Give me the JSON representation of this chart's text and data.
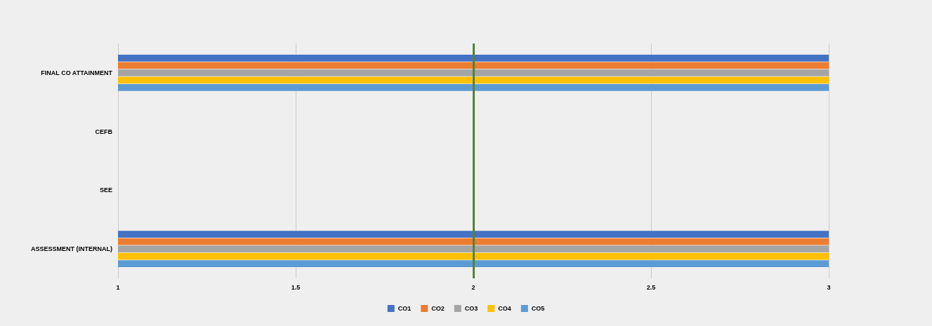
{
  "chart_data": {
    "type": "bar",
    "orientation": "horizontal",
    "categories": [
      "FINAL CO ATTAINMENT",
      "CEFB",
      "SEE",
      "ASSESSMENT (INTERNAL)"
    ],
    "series": [
      {
        "name": "CO1",
        "color": "#4472c4",
        "values": [
          3,
          null,
          null,
          3
        ]
      },
      {
        "name": "CO2",
        "color": "#ed7d31",
        "values": [
          3,
          null,
          null,
          3
        ]
      },
      {
        "name": "CO3",
        "color": "#a5a5a5",
        "values": [
          3,
          null,
          null,
          3
        ]
      },
      {
        "name": "CO4",
        "color": "#ffc000",
        "values": [
          3,
          null,
          null,
          3
        ]
      },
      {
        "name": "CO5",
        "color": "#5b9bd5",
        "values": [
          3,
          null,
          null,
          3
        ]
      }
    ],
    "xlim": [
      1,
      3
    ],
    "xticks": [
      1,
      1.5,
      2,
      2.5,
      3
    ],
    "ref_lines": [
      {
        "axis": "x",
        "value": 2,
        "color": "#548235"
      }
    ],
    "grid": "x",
    "legend": "bottom"
  }
}
